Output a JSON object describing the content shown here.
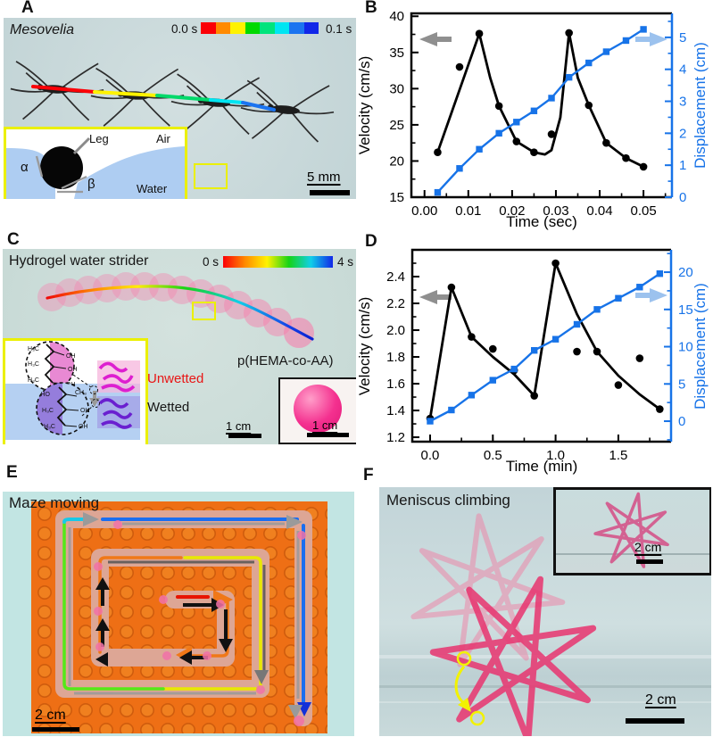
{
  "figure": {
    "panels": {
      "a": {
        "letter": "A",
        "title": "Mesovelia",
        "colorbar_start": "0.0 s",
        "colorbar_end": "0.1 s",
        "colorbar_colors": [
          "#fb0007",
          "#ff8a00",
          "#fff200",
          "#00d900",
          "#00e47c",
          "#00e5f2",
          "#1b74f0",
          "#1127e8"
        ],
        "inset": {
          "leg": "Leg",
          "air": "Air",
          "water": "Water",
          "alpha": "α",
          "beta": "β"
        },
        "scalebar": "5 mm"
      },
      "b": {
        "letter": "B"
      },
      "c": {
        "letter": "C",
        "title": "Hydrogel water strider",
        "colorbar_start": "0 s",
        "colorbar_end": "4 s",
        "colorbar_colors": [
          "#fb0007",
          "#ff8a00",
          "#fff200",
          "#16d316",
          "#10cfe8",
          "#1127e8"
        ],
        "unwetted": "Unwetted",
        "wetted": "Wetted",
        "material": "p(HEMA-co-AA)",
        "scalebar": "1 cm",
        "photo_scalebar": "1 cm",
        "chem": {
          "h3c": "H₃C",
          "oh": "OH",
          "ho": "HO",
          "ch3": "CH₃"
        }
      },
      "d": {
        "letter": "D"
      },
      "e": {
        "letter": "E",
        "title": "Maze moving",
        "scalebar": "2 cm"
      },
      "f": {
        "letter": "F",
        "title": "Meniscus climbing",
        "scalebar": "2 cm",
        "inset_scalebar": "2 cm"
      }
    }
  },
  "colors": {
    "displacement_blue": "#1773e8",
    "arrow_gray": "#8f8f8f",
    "arrow_lightblue": "#9cc2ee",
    "unwetted_red": "#e81616",
    "maze_orange": "#ee6f15",
    "gel_pink": "#f4308f"
  },
  "chart_data": [
    {
      "id": "B",
      "type": "line",
      "xlabel": "Time (sec)",
      "ylabel_left": "Velocity (cm/s)",
      "ylabel_right": "Displacement (cm)",
      "xlim": [
        -0.003,
        0.0565
      ],
      "ylim_left": [
        15,
        40.4
      ],
      "ylim_right": [
        0,
        5.75
      ],
      "xticks": {
        "values": [
          0,
          0.01,
          0.02,
          0.03,
          0.04,
          0.05
        ],
        "labels": [
          "0.00",
          "0.01",
          "0.02",
          "0.03",
          "0.04",
          "0.05"
        ],
        "minor": 0.005
      },
      "yticks_left": {
        "values": [
          15,
          20,
          25,
          30,
          35,
          40
        ],
        "labels": [
          "15",
          "20",
          "25",
          "30",
          "35",
          "40"
        ],
        "minor": 2.5
      },
      "yticks_right": {
        "values": [
          0,
          1,
          2,
          3,
          4,
          5
        ],
        "labels": [
          "0",
          "1",
          "2",
          "3",
          "4",
          "5"
        ],
        "minor": 0.5
      },
      "series": [
        {
          "name": "velocity-points",
          "axis": "left",
          "color": "#000000",
          "marker": "circle",
          "line": false,
          "x": [
            0.003,
            0.008,
            0.0125,
            0.017,
            0.021,
            0.025,
            0.029,
            0.033,
            0.0375,
            0.0415,
            0.046,
            0.05
          ],
          "y": [
            21.2,
            33.0,
            37.6,
            27.6,
            22.7,
            21.2,
            23.7,
            37.7,
            27.7,
            22.5,
            20.4,
            19.2
          ]
        },
        {
          "name": "velocity-fit-line",
          "axis": "left",
          "color": "#000000",
          "marker": null,
          "line": true,
          "x": [
            0.003,
            0.0125,
            0.015,
            0.017,
            0.021,
            0.025,
            0.0275,
            0.029,
            0.031,
            0.033,
            0.035,
            0.0375,
            0.0415,
            0.046,
            0.05
          ],
          "y": [
            21.2,
            37.6,
            31.5,
            27.6,
            22.7,
            21.2,
            20.9,
            21.5,
            26.0,
            37.7,
            31.5,
            27.7,
            22.5,
            20.4,
            19.2
          ]
        },
        {
          "name": "displacement",
          "axis": "right",
          "color": "#1773e8",
          "marker": "square",
          "line": true,
          "x": [
            0.003,
            0.008,
            0.0125,
            0.017,
            0.021,
            0.025,
            0.029,
            0.033,
            0.0375,
            0.0415,
            0.046,
            0.05
          ],
          "y": [
            0.15,
            0.9,
            1.5,
            2.0,
            2.35,
            2.7,
            3.1,
            3.75,
            4.2,
            4.55,
            4.9,
            5.25
          ]
        }
      ]
    },
    {
      "id": "D",
      "type": "line",
      "xlabel": "Time (min)",
      "ylabel_left": "Velocity (cm/s)",
      "ylabel_right": "Displacement (cm)",
      "xlim": [
        -0.142,
        1.92
      ],
      "ylim_left": [
        1.167,
        2.6
      ],
      "ylim_right": [
        -2.75,
        23
      ],
      "xticks": {
        "values": [
          0,
          0.5,
          1.0,
          1.5
        ],
        "labels": [
          "0.0",
          "0.5",
          "1.0",
          "1.5"
        ],
        "minor": 0.25
      },
      "yticks_left": {
        "values": [
          1.2,
          1.4,
          1.6,
          1.8,
          2.0,
          2.2,
          2.4
        ],
        "labels": [
          "1.2",
          "1.4",
          "1.6",
          "1.8",
          "2.0",
          "2.2",
          "2.4"
        ],
        "minor": 0.1
      },
      "yticks_right": {
        "values": [
          0,
          5,
          10,
          15,
          20
        ],
        "labels": [
          "0",
          "5",
          "10",
          "15",
          "20"
        ],
        "minor": 2.5
      },
      "series": [
        {
          "name": "velocity-points",
          "axis": "left",
          "color": "#000000",
          "marker": "circle",
          "line": false,
          "x": [
            0,
            0.17,
            0.33,
            0.5,
            0.67,
            0.83,
            1.0,
            1.17,
            1.33,
            1.5,
            1.67,
            1.83
          ],
          "y": [
            1.34,
            2.32,
            1.95,
            1.86,
            1.7,
            1.51,
            2.5,
            1.84,
            1.84,
            1.59,
            1.79,
            1.41
          ]
        },
        {
          "name": "velocity-fit-line",
          "axis": "left",
          "color": "#000000",
          "marker": null,
          "line": true,
          "x": [
            0,
            0.17,
            0.33,
            0.5,
            0.67,
            0.83,
            1.0,
            1.17,
            1.33,
            1.5,
            1.67,
            1.83
          ],
          "y": [
            1.34,
            2.32,
            1.95,
            1.8,
            1.67,
            1.51,
            2.5,
            2.12,
            1.84,
            1.66,
            1.52,
            1.41
          ]
        },
        {
          "name": "displacement",
          "axis": "right",
          "color": "#1773e8",
          "marker": "square",
          "line": true,
          "x": [
            0,
            0.17,
            0.33,
            0.5,
            0.67,
            0.83,
            1.0,
            1.17,
            1.33,
            1.5,
            1.67,
            1.83
          ],
          "y": [
            0,
            1.5,
            3.5,
            5.5,
            7.0,
            9.5,
            11.0,
            13.0,
            15.0,
            16.5,
            18.0,
            19.8
          ]
        }
      ]
    }
  ]
}
